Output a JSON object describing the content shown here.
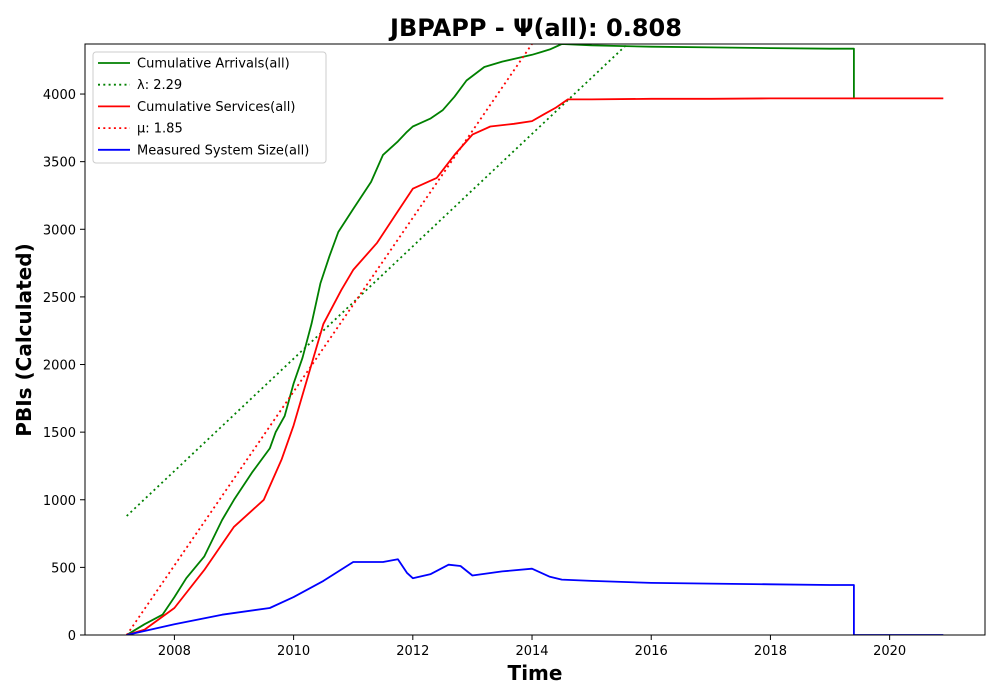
{
  "chart_data": {
    "type": "line",
    "title": "JBPAPP -  Ψ(all): 0.808",
    "xlabel": "Time",
    "ylabel": "PBIs (Calculated)",
    "xlim": [
      2006.5,
      2021.6
    ],
    "ylim": [
      0,
      4370
    ],
    "x_ticks": [
      2008,
      2010,
      2012,
      2014,
      2016,
      2018,
      2020
    ],
    "y_ticks": [
      0,
      500,
      1000,
      1500,
      2000,
      2500,
      3000,
      3500,
      4000
    ],
    "grid": false,
    "legend_position": "top-left",
    "series": [
      {
        "name": "Cumulative Arrivals(all)",
        "style": "solid",
        "color": "#008000",
        "x": [
          2007.2,
          2007.5,
          2007.8,
          2008.0,
          2008.2,
          2008.5,
          2008.8,
          2009.0,
          2009.3,
          2009.6,
          2009.7,
          2009.85,
          2010.0,
          2010.15,
          2010.3,
          2010.45,
          2010.6,
          2010.75,
          2011.0,
          2011.3,
          2011.5,
          2011.75,
          2011.9,
          2012.0,
          2012.1,
          2012.3,
          2012.5,
          2012.7,
          2012.9,
          2013.2,
          2013.5,
          2013.8,
          2014.0,
          2014.15,
          2014.3,
          2014.5,
          2015.0,
          2016.0,
          2017.0,
          2018.0,
          2019.0,
          2019.4,
          2019.4
        ],
        "y": [
          0,
          80,
          150,
          280,
          420,
          580,
          850,
          1000,
          1200,
          1380,
          1500,
          1620,
          1860,
          2050,
          2300,
          2600,
          2800,
          2980,
          3150,
          3350,
          3550,
          3650,
          3720,
          3760,
          3780,
          3820,
          3880,
          3980,
          4100,
          4200,
          4240,
          4270,
          4290,
          4310,
          4330,
          4370,
          4360,
          4350,
          4345,
          4340,
          4335,
          4335,
          3970
        ]
      },
      {
        "name": "λ: 2.29",
        "style": "dotted",
        "color": "#008000",
        "x": [
          2007.2,
          2015.6
        ],
        "y": [
          880,
          4370
        ]
      },
      {
        "name": "Cumulative Services(all)",
        "style": "solid",
        "color": "#ff0000",
        "x": [
          2007.2,
          2007.5,
          2008.0,
          2008.5,
          2009.0,
          2009.5,
          2009.8,
          2010.0,
          2010.2,
          2010.5,
          2010.8,
          2011.0,
          2011.4,
          2011.7,
          2012.0,
          2012.4,
          2012.7,
          2013.0,
          2013.3,
          2013.7,
          2014.0,
          2014.2,
          2014.4,
          2014.6,
          2015.0,
          2016.0,
          2017.0,
          2018.0,
          2019.0,
          2019.4,
          2020.9
        ],
        "y": [
          0,
          40,
          200,
          480,
          800,
          1000,
          1300,
          1550,
          1850,
          2300,
          2550,
          2700,
          2900,
          3100,
          3300,
          3380,
          3550,
          3700,
          3760,
          3780,
          3800,
          3850,
          3900,
          3960,
          3960,
          3965,
          3965,
          3968,
          3968,
          3968,
          3968
        ]
      },
      {
        "name": "μ: 1.85",
        "style": "dotted",
        "color": "#ff0000",
        "x": [
          2007.2,
          2014.0
        ],
        "y": [
          0,
          4370
        ]
      },
      {
        "name": "Measured System Size(all)",
        "style": "solid",
        "color": "#0000ff",
        "x": [
          2007.2,
          2008.0,
          2008.8,
          2009.6,
          2010.0,
          2010.5,
          2011.0,
          2011.5,
          2011.75,
          2011.9,
          2012.0,
          2012.3,
          2012.6,
          2012.8,
          2013.0,
          2013.5,
          2014.0,
          2014.3,
          2014.5,
          2015.0,
          2016.0,
          2017.0,
          2018.0,
          2019.0,
          2019.4,
          2019.4,
          2020.9
        ],
        "y": [
          0,
          80,
          150,
          200,
          280,
          400,
          540,
          540,
          560,
          460,
          420,
          450,
          520,
          510,
          440,
          470,
          490,
          430,
          410,
          400,
          385,
          380,
          375,
          370,
          370,
          0,
          0
        ]
      }
    ]
  }
}
